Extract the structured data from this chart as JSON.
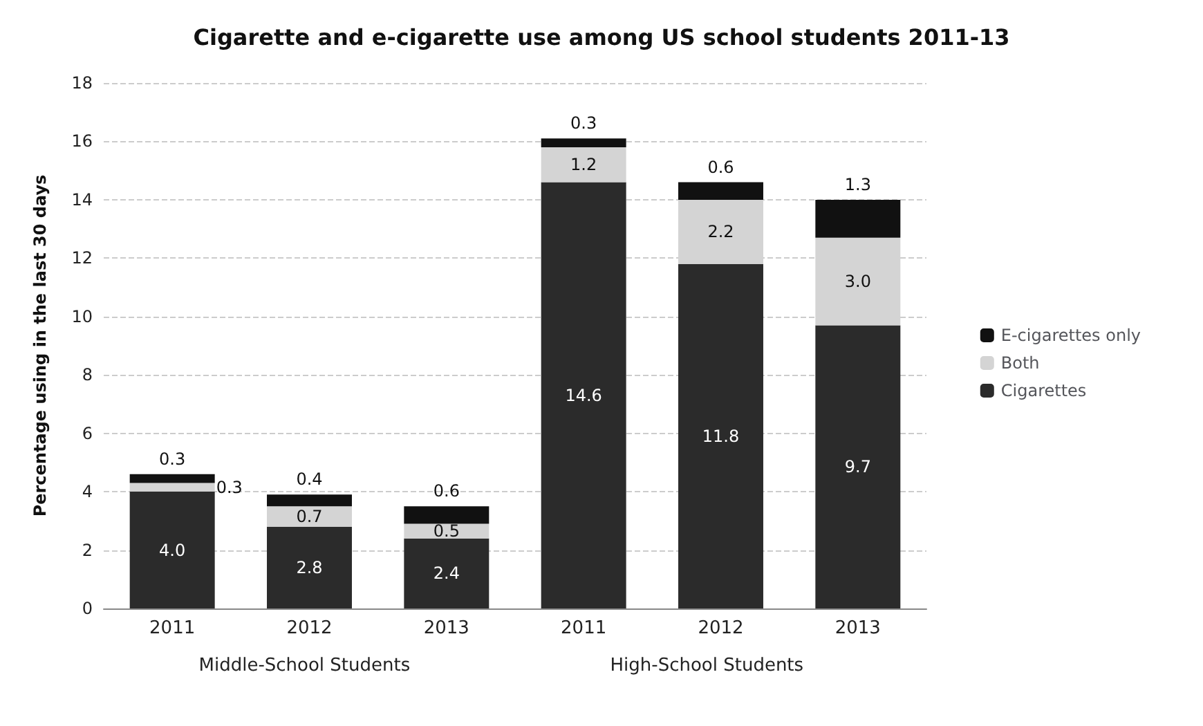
{
  "chart_data": {
    "type": "bar",
    "title": "Cigarette and e-cigarette use among US school students 2011-13",
    "ylabel": "Percentage using in the last 30 days",
    "categories": [
      "2011",
      "2012",
      "2013",
      "2011",
      "2012",
      "2013"
    ],
    "series": [
      {
        "name": "Cigarettes",
        "color": "#2b2b2b",
        "values": [
          4.0,
          2.8,
          2.4,
          14.6,
          11.8,
          9.7
        ],
        "value_labels": [
          "4.0",
          "2.8",
          "2.4",
          "14.6",
          "11.8",
          "9.7"
        ]
      },
      {
        "name": "Both",
        "color": "#d4d4d4",
        "values": [
          0.3,
          0.7,
          0.5,
          1.2,
          2.2,
          3.0
        ],
        "value_labels": [
          "0.3",
          "0.7",
          "0.5",
          "1.2",
          "2.2",
          "3.0"
        ]
      },
      {
        "name": "E-cigarettes only",
        "color": "#111111",
        "values": [
          0.3,
          0.4,
          0.6,
          0.3,
          0.6,
          1.3
        ],
        "value_labels": [
          "0.3",
          "0.4",
          "0.6",
          "0.3",
          "0.6",
          "1.3"
        ]
      }
    ],
    "stacked": true,
    "ylim": [
      0,
      18
    ],
    "yticks": [
      0,
      2,
      4,
      6,
      8,
      10,
      12,
      14,
      16,
      18
    ],
    "grid": "y",
    "legend": "right",
    "annotations": [
      "Middle-School Students",
      "High-School Students"
    ]
  }
}
